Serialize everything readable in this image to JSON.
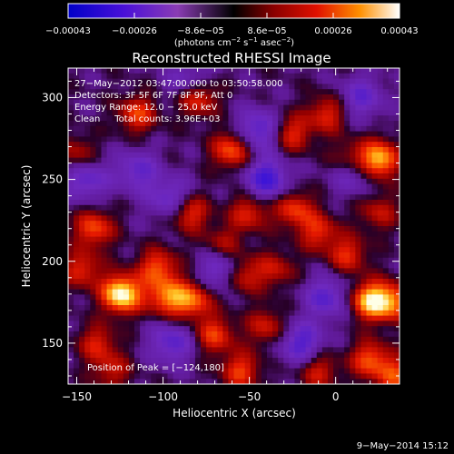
{
  "chart_data": {
    "type": "heatmap",
    "title": "Reconstructed RHESSI Image",
    "xlabel": "Heliocentric X (arcsec)",
    "ylabel": "Heliocentric Y (arcsec)",
    "xlim": [
      -155,
      37
    ],
    "ylim": [
      125,
      318
    ],
    "x_ticks": [
      -150,
      -100,
      -50,
      0
    ],
    "x_tick_labels": [
      "−150",
      "−100",
      "−50",
      "0"
    ],
    "y_ticks": [
      150,
      200,
      250,
      300
    ],
    "y_tick_labels": [
      "150",
      "200",
      "250",
      "300"
    ],
    "colorbar": {
      "range": [
        -0.00043,
        0.00043
      ],
      "tick_labels": [
        "−0.00043",
        "−0.00026",
        "−8.6e−05",
        "8.6e−05",
        "0.00026",
        "0.00043"
      ],
      "unit_main": "(photons cm",
      "unit_sup1": "−2",
      "unit_mid": " s",
      "unit_sup2": "−1",
      "unit_mid2": " asec",
      "unit_sup3": "−2",
      "unit_end": ")"
    },
    "annotations": [
      "27−May−2012 03:47:00.000 to 03:50:58.000",
      "Detectors: 3F 5F 6F 7F 8F 9F, Att 0",
      "Energy Range: 12.0 − 25.0 keV",
      "Clean     Total counts: 3.96E+03"
    ],
    "peak_label": "Position of Peak = [−124,180]",
    "peak_position": [
      -124,
      180
    ],
    "blobs": [
      {
        "x": -124,
        "y": 180,
        "v": 1.0
      },
      {
        "x": -103,
        "y": 196,
        "v": 0.55
      },
      {
        "x": -98,
        "y": 178,
        "v": 0.6
      },
      {
        "x": -140,
        "y": 220,
        "v": 0.55
      },
      {
        "x": -147,
        "y": 195,
        "v": 0.45
      },
      {
        "x": -138,
        "y": 150,
        "v": 0.4
      },
      {
        "x": -85,
        "y": 230,
        "v": 0.55
      },
      {
        "x": -83,
        "y": 176,
        "v": 0.6
      },
      {
        "x": -55,
        "y": 192,
        "v": 0.55
      },
      {
        "x": -65,
        "y": 210,
        "v": 0.35
      },
      {
        "x": -50,
        "y": 230,
        "v": 0.45
      },
      {
        "x": -24,
        "y": 232,
        "v": 0.5
      },
      {
        "x": -10,
        "y": 218,
        "v": 0.45
      },
      {
        "x": 7,
        "y": 204,
        "v": 0.45
      },
      {
        "x": -115,
        "y": 290,
        "v": 0.5
      },
      {
        "x": -80,
        "y": 300,
        "v": 0.55
      },
      {
        "x": -60,
        "y": 268,
        "v": 0.6
      },
      {
        "x": -25,
        "y": 278,
        "v": 0.45
      },
      {
        "x": -5,
        "y": 290,
        "v": 0.45
      },
      {
        "x": 25,
        "y": 262,
        "v": 0.85
      },
      {
        "x": 8,
        "y": 262,
        "v": 0.45
      },
      {
        "x": 20,
        "y": 176,
        "v": 0.8
      },
      {
        "x": 33,
        "y": 175,
        "v": 0.6
      },
      {
        "x": 20,
        "y": 140,
        "v": 0.55
      },
      {
        "x": -10,
        "y": 133,
        "v": 0.4
      },
      {
        "x": 35,
        "y": 130,
        "v": 0.5
      },
      {
        "x": -70,
        "y": 155,
        "v": 0.5
      },
      {
        "x": -40,
        "y": 160,
        "v": 0.4
      },
      {
        "x": -55,
        "y": 133,
        "v": 0.5
      },
      {
        "x": -130,
        "y": 133,
        "v": 0.35
      },
      {
        "x": -35,
        "y": 195,
        "v": 0.35
      },
      {
        "x": -150,
        "y": 265,
        "v": 0.35
      },
      {
        "x": 25,
        "y": 230,
        "v": 0.35
      }
    ],
    "dips": [
      {
        "x": -40,
        "y": 250,
        "v": -0.6
      },
      {
        "x": -65,
        "y": 195,
        "v": -0.55
      },
      {
        "x": -95,
        "y": 238,
        "v": -0.45
      },
      {
        "x": -45,
        "y": 280,
        "v": -0.5
      },
      {
        "x": 10,
        "y": 255,
        "v": -0.45
      },
      {
        "x": -115,
        "y": 255,
        "v": -0.4
      },
      {
        "x": -20,
        "y": 150,
        "v": -0.5
      },
      {
        "x": -95,
        "y": 150,
        "v": -0.45
      },
      {
        "x": -145,
        "y": 250,
        "v": -0.45
      },
      {
        "x": -5,
        "y": 178,
        "v": -0.45
      },
      {
        "x": 15,
        "y": 300,
        "v": -0.4
      },
      {
        "x": -85,
        "y": 310,
        "v": -0.35
      }
    ]
  },
  "footer": {
    "timestamp": "9−May−2014 15:12"
  }
}
